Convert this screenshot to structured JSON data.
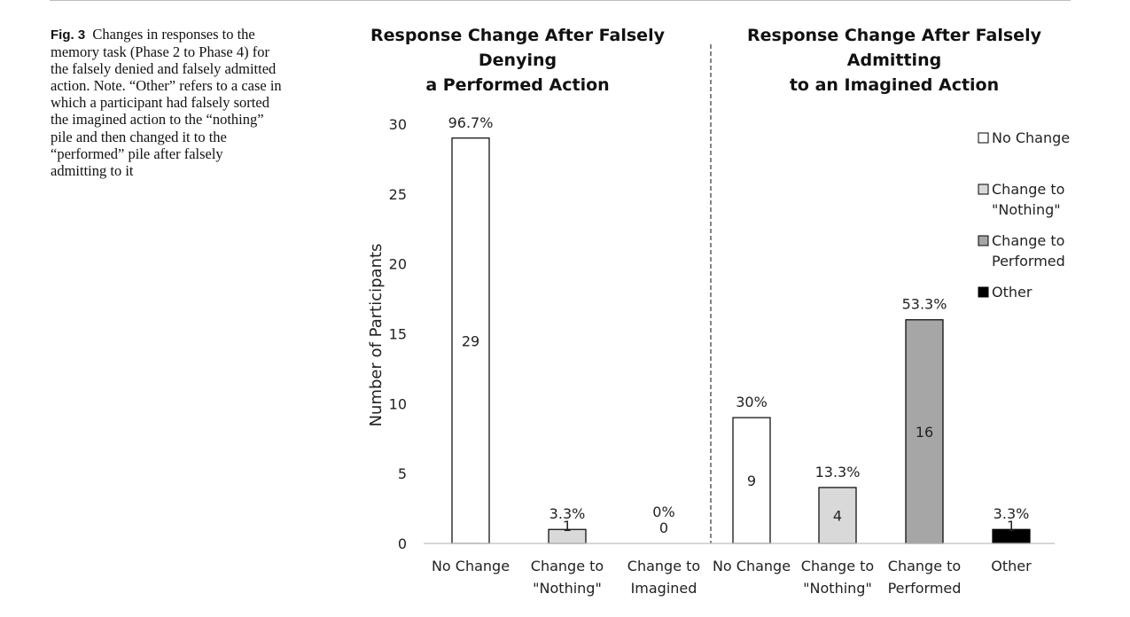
{
  "caption": {
    "label": "Fig. 3",
    "text": "Changes in responses to the memory task (Phase 2 to Phase 4) for the falsely denied and falsely admitted action. Note. “Other” refers to a case in which a participant had falsely sorted the imagined action to the “nothing” pile and then changed it to the “performed” pile after falsely admitting to it"
  },
  "chart_data": {
    "type": "bar",
    "ylabel": "Number of Participants",
    "ylim": [
      0,
      30
    ],
    "yticks": [
      0,
      5,
      10,
      15,
      20,
      25,
      30
    ],
    "panels": [
      {
        "title": [
          "Response Change After Falsely",
          "Denying",
          "a Performed Action"
        ],
        "categories": [
          [
            "No Change"
          ],
          [
            "Change to",
            "\"Nothing\""
          ],
          [
            "Change to",
            "Imagined"
          ]
        ],
        "values": [
          29,
          1,
          0
        ],
        "percent_labels": [
          "96.7%",
          "3.3%",
          "0%"
        ],
        "value_labels": [
          "29",
          "1",
          "0"
        ],
        "fills": [
          "#ffffff",
          "#d9d9d9",
          "#ffffff"
        ]
      },
      {
        "title": [
          "Response Change After Falsely",
          "Admitting",
          "to an Imagined Action"
        ],
        "categories": [
          [
            "No Change"
          ],
          [
            "Change to",
            "\"Nothing\""
          ],
          [
            "Change to",
            "Performed"
          ],
          [
            "Other"
          ]
        ],
        "values": [
          9,
          4,
          16,
          1
        ],
        "percent_labels": [
          "30%",
          "13.3%",
          "53.3%",
          "3.3%"
        ],
        "value_labels": [
          "9",
          "4",
          "16",
          "1"
        ],
        "fills": [
          "#ffffff",
          "#d9d9d9",
          "#a6a6a6",
          "#000000"
        ]
      }
    ],
    "legend": {
      "placement": "right",
      "entries": [
        {
          "label": [
            "No Change"
          ],
          "color": "#ffffff"
        },
        {
          "label": [
            "Change to",
            "\"Nothing\""
          ],
          "color": "#d9d9d9"
        },
        {
          "label": [
            "Change to",
            "Performed"
          ],
          "color": "#a6a6a6"
        },
        {
          "label": [
            "Other"
          ],
          "color": "#000000"
        }
      ]
    },
    "divider": "dashed"
  }
}
